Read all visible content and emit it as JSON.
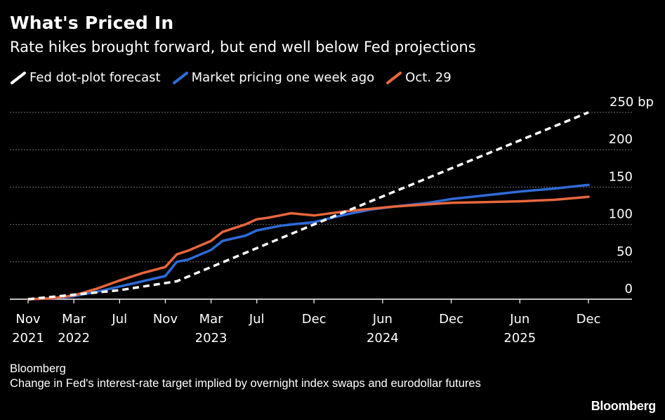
{
  "header": {
    "title": "What's Priced In",
    "subtitle": "Rate hikes brought forward, but end well below Fed projections"
  },
  "legend": [
    {
      "label": "Fed dot-plot forecast",
      "color": "#ffffff"
    },
    {
      "label": "Market pricing one week ago",
      "color": "#2e6bd8"
    },
    {
      "label": "Oct. 29",
      "color": "#e8663d"
    }
  ],
  "chart_data": {
    "type": "line",
    "title": "What's Priced In",
    "subtitle": "Rate hikes brought forward, but end well below Fed projections",
    "ylabel": "bp",
    "ylim": [
      0,
      250
    ],
    "yticks": [
      {
        "value": 250,
        "label": "250 bp"
      },
      {
        "value": 200,
        "label": "200"
      },
      {
        "value": 150,
        "label": "150"
      },
      {
        "value": 100,
        "label": "100"
      },
      {
        "value": 50,
        "label": "50"
      },
      {
        "value": 0,
        "label": "0"
      }
    ],
    "xlim": [
      0,
      49.5
    ],
    "xticks": [
      {
        "t": 0,
        "line1": "Nov",
        "line2": "2021"
      },
      {
        "t": 4,
        "line1": "Mar",
        "line2": "2022"
      },
      {
        "t": 8,
        "line1": "Jul",
        "line2": ""
      },
      {
        "t": 12,
        "line1": "Nov",
        "line2": ""
      },
      {
        "t": 16,
        "line1": "Mar",
        "line2": "2023"
      },
      {
        "t": 20,
        "line1": "Jul",
        "line2": ""
      },
      {
        "t": 25,
        "line1": "Dec",
        "line2": ""
      },
      {
        "t": 31,
        "line1": "Jun",
        "line2": "2024"
      },
      {
        "t": 37,
        "line1": "Dec",
        "line2": ""
      },
      {
        "t": 43,
        "line1": "Jun",
        "line2": "2025"
      },
      {
        "t": 49,
        "line1": "Dec",
        "line2": ""
      }
    ],
    "series": [
      {
        "name": "Fed dot-plot forecast",
        "color": "#ffffff",
        "dashed": true,
        "points": [
          [
            0,
            0
          ],
          [
            4,
            6
          ],
          [
            8,
            12
          ],
          [
            13,
            24
          ],
          [
            25,
            100
          ],
          [
            37,
            175
          ],
          [
            49,
            250
          ]
        ]
      },
      {
        "name": "Market pricing one week ago",
        "color": "#2e6bd8",
        "dashed": false,
        "points": [
          [
            0,
            0
          ],
          [
            2,
            1
          ],
          [
            4,
            4
          ],
          [
            6,
            10
          ],
          [
            8,
            17
          ],
          [
            10,
            24
          ],
          [
            12,
            31
          ],
          [
            13,
            50
          ],
          [
            14,
            53
          ],
          [
            16,
            66
          ],
          [
            17,
            78
          ],
          [
            19,
            85
          ],
          [
            20,
            92
          ],
          [
            21,
            95
          ],
          [
            22,
            98
          ],
          [
            23,
            100
          ],
          [
            25,
            103
          ],
          [
            26,
            107
          ],
          [
            28,
            114
          ],
          [
            30,
            120
          ],
          [
            32,
            124
          ],
          [
            35,
            129
          ],
          [
            37,
            134
          ],
          [
            40,
            139
          ],
          [
            43,
            144
          ],
          [
            46,
            148
          ],
          [
            49,
            153
          ]
        ]
      },
      {
        "name": "Oct. 29",
        "color": "#e8663d",
        "dashed": false,
        "points": [
          [
            0,
            0
          ],
          [
            2,
            1
          ],
          [
            4,
            5
          ],
          [
            6,
            14
          ],
          [
            8,
            25
          ],
          [
            10,
            35
          ],
          [
            12,
            43
          ],
          [
            13,
            60
          ],
          [
            14,
            65
          ],
          [
            16,
            78
          ],
          [
            17,
            90
          ],
          [
            19,
            100
          ],
          [
            20,
            107
          ],
          [
            21,
            109
          ],
          [
            22,
            112
          ],
          [
            23,
            115
          ],
          [
            25,
            112
          ],
          [
            26,
            114
          ],
          [
            28,
            118
          ],
          [
            30,
            121
          ],
          [
            32,
            124
          ],
          [
            35,
            127
          ],
          [
            37,
            129
          ],
          [
            40,
            130
          ],
          [
            43,
            131
          ],
          [
            46,
            133
          ],
          [
            49,
            137
          ]
        ]
      }
    ]
  },
  "footer": {
    "source": "Bloomberg",
    "note": "Change in Fed's interest-rate target implied by overnight index swaps and eurodollar futures",
    "brand": "Bloomberg"
  }
}
